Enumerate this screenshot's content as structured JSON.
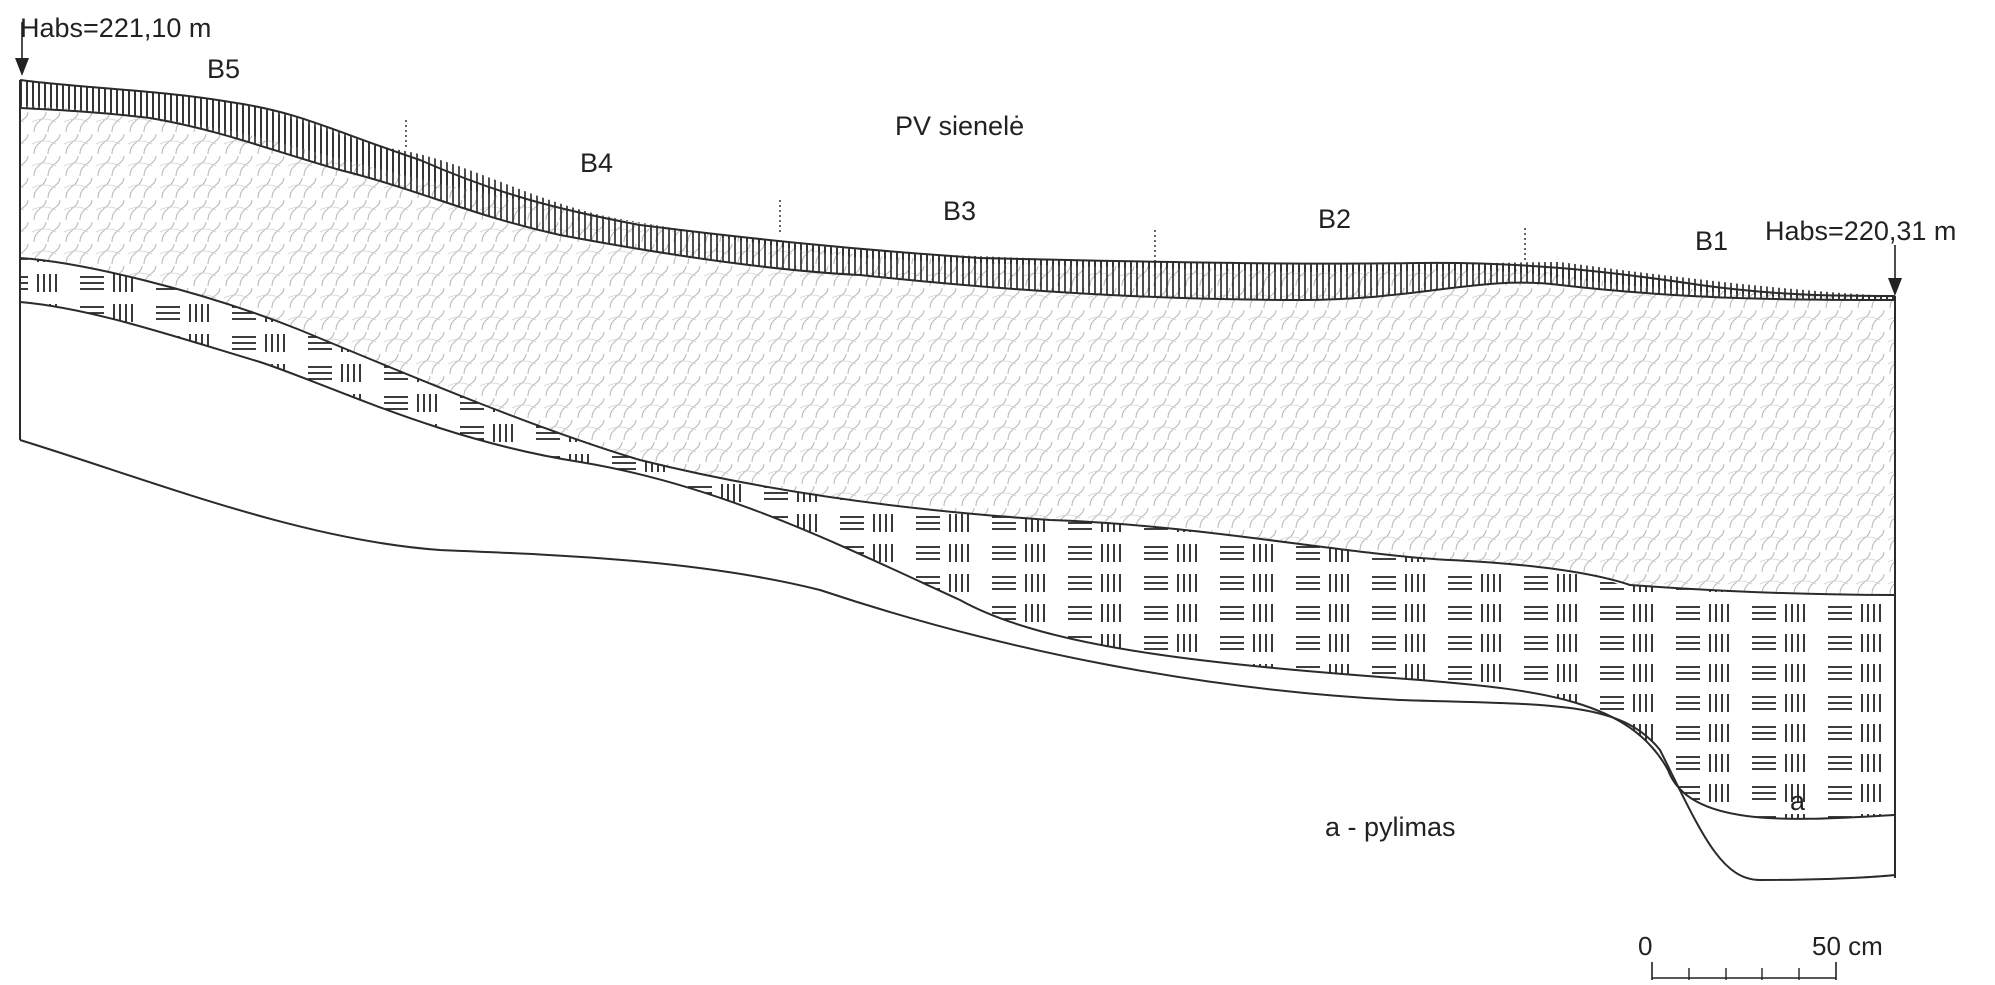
{
  "title": "PV sienelė",
  "elevations": {
    "left": "Habs=221,10 m",
    "right": "Habs=220,31 m"
  },
  "sections": [
    "B5",
    "B4",
    "B3",
    "B2",
    "B1"
  ],
  "layer_labels": {
    "fill_layer": "a - pylimas",
    "fill_marker": "a"
  },
  "scale_bar": {
    "start": "0",
    "end": "50 cm"
  },
  "colors": {
    "ink": "#2b2b2b",
    "hatch_light": "#9a9a9a",
    "paper": "#ffffff"
  }
}
